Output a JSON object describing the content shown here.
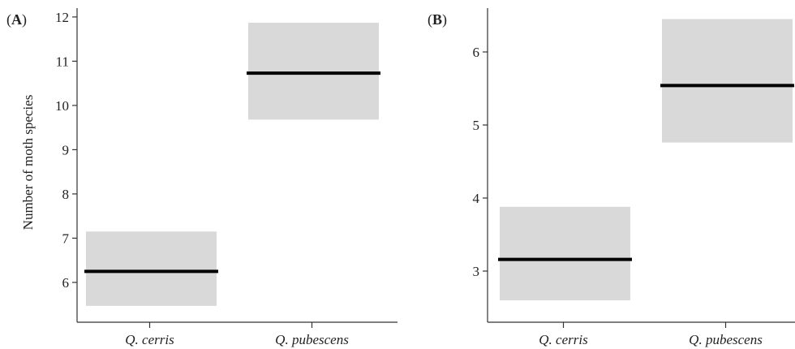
{
  "chart_data": [
    {
      "type": "box",
      "panel_label": {
        "open": "(",
        "letter": "A",
        "close": ")"
      },
      "title": "",
      "xlabel": "",
      "ylabel": "Number of moth species",
      "ylim": [
        5.1,
        12.2
      ],
      "yticks": [
        6,
        7,
        8,
        9,
        10,
        11,
        12
      ],
      "categories": [
        "Q. cerris",
        "Q. pubescens"
      ],
      "mean": [
        6.25,
        10.73
      ],
      "lower": [
        5.47,
        9.68
      ],
      "upper": [
        7.15,
        11.87
      ],
      "colors": {
        "band": "#d9d9d9",
        "line": "#000000",
        "axis": "#333333"
      },
      "grid": false
    },
    {
      "type": "box",
      "panel_label": {
        "open": "(",
        "letter": "B",
        "close": ")"
      },
      "title": "",
      "xlabel": "",
      "ylabel": "",
      "ylim": [
        2.3,
        6.6
      ],
      "yticks": [
        3,
        4,
        5,
        6
      ],
      "categories": [
        "Q. cerris",
        "Q. pubescens"
      ],
      "mean": [
        3.16,
        5.54
      ],
      "lower": [
        2.6,
        4.76
      ],
      "upper": [
        3.88,
        6.45
      ],
      "colors": {
        "band": "#d9d9d9",
        "line": "#000000",
        "axis": "#333333"
      },
      "grid": false
    }
  ]
}
